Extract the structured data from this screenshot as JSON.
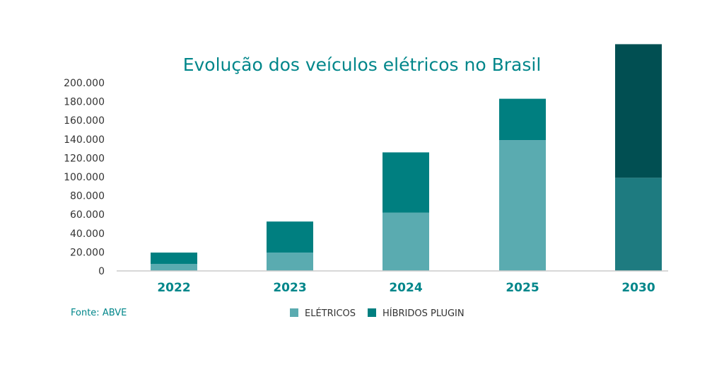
{
  "chart_data": {
    "type": "bar",
    "stacked": true,
    "title": "Evolução dos veículos elétricos no Brasil",
    "categories": [
      "2022",
      "2023",
      "2024",
      "2025",
      "2030"
    ],
    "series": [
      {
        "name": "ELÉTRICOS",
        "values": [
          7500,
          19500,
          62000,
          139000,
          99000
        ],
        "color": "#5aabb0"
      },
      {
        "name": "HÍBRIDOS PLUGIN",
        "values": [
          12000,
          33000,
          64000,
          44000,
          142000
        ],
        "color": "#007f80"
      }
    ],
    "highlight_colors": {
      "2030": {
        "ELÉTRICOS": "#1e7b80",
        "HÍBRIDOS PLUGIN": "#014f52"
      }
    },
    "yticks": [
      "0",
      "20.000",
      "40.000",
      "60.000",
      "80.000",
      "100.000",
      "120.000",
      "140.000",
      "160.000",
      "180.000",
      "200.000"
    ],
    "ylim": [
      0,
      240000
    ],
    "legend": "bottom-center",
    "source": "Fonte: ABVE",
    "xlabel": "",
    "ylabel": ""
  }
}
